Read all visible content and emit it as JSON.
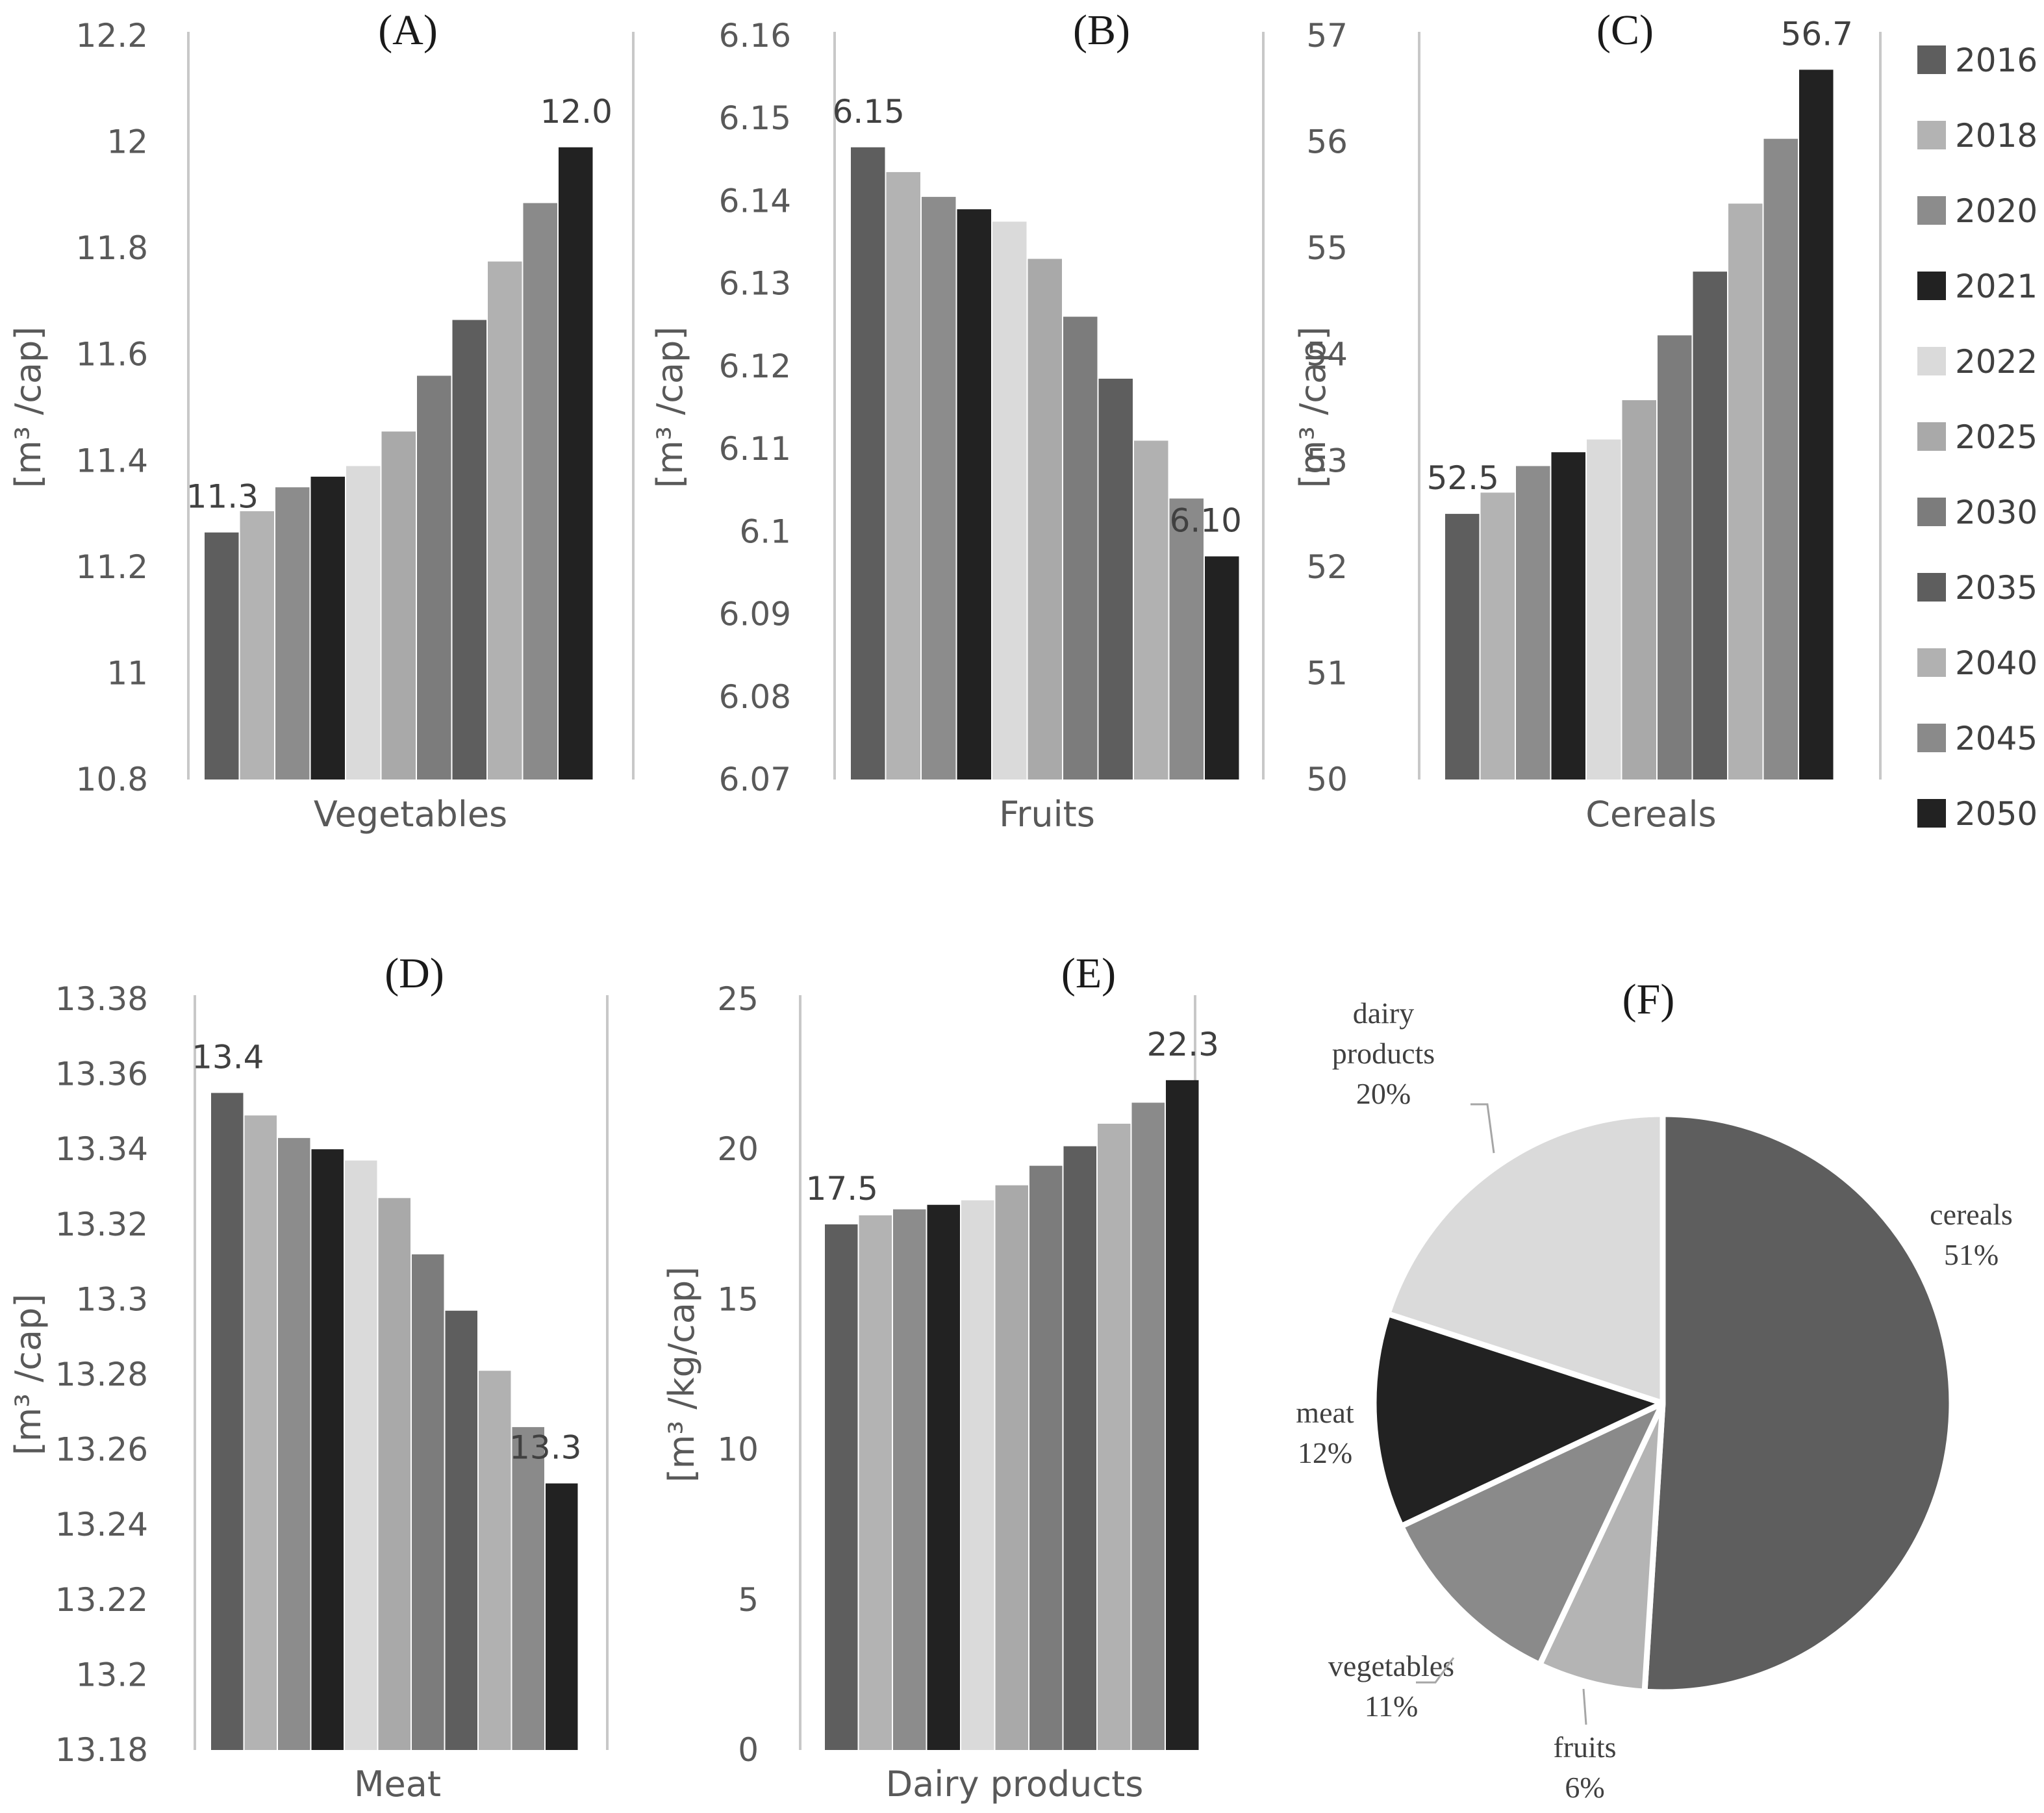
{
  "figure": {
    "legend": {
      "title": "",
      "years": [
        "2016",
        "2018",
        "2020",
        "2021",
        "2022",
        "2025",
        "2030",
        "2035",
        "2040",
        "2045",
        "2050"
      ],
      "colors": [
        "#5e5e5e",
        "#b3b3b3",
        "#8c8c8c",
        "#222222",
        "#dadada",
        "#a9a9a9",
        "#7c7c7c",
        "#5e5e5e",
        "#b1b1b1",
        "#8a8a8a",
        "#222222"
      ]
    }
  },
  "chart_data": [
    {
      "type": "bar",
      "panel": "(A)",
      "category": "Vegetables",
      "ylabel": "[m³ /cap]",
      "ylim": [
        10.8,
        12.2
      ],
      "ticks": [
        10.8,
        11,
        11.2,
        11.4,
        11.6,
        11.8,
        12,
        12.2
      ],
      "tick_labels": [
        "10.8",
        "11",
        "11.2",
        "11.4",
        "11.6",
        "11.8",
        "12",
        "12.2"
      ],
      "values": [
        11.265,
        11.305,
        11.35,
        11.37,
        11.39,
        11.455,
        11.56,
        11.665,
        11.775,
        11.885,
        11.99
      ],
      "first_label": "11.3",
      "last_label": "12.0"
    },
    {
      "type": "bar",
      "panel": "(B)",
      "category": "Fruits",
      "ylabel": "[m³ /cap]",
      "ylim": [
        6.07,
        6.16
      ],
      "ticks": [
        6.07,
        6.08,
        6.09,
        6.1,
        6.11,
        6.12,
        6.13,
        6.14,
        6.15,
        6.16
      ],
      "tick_labels": [
        "6.07",
        "6.08",
        "6.09",
        "6.1",
        "6.11",
        "6.12",
        "6.13",
        "6.14",
        "6.15",
        "6.16"
      ],
      "values": [
        6.1465,
        6.1435,
        6.1405,
        6.139,
        6.1375,
        6.133,
        6.126,
        6.1185,
        6.111,
        6.104,
        6.097
      ],
      "first_label": "6.15",
      "last_label": "6.10"
    },
    {
      "type": "bar",
      "panel": "(C)",
      "category": "Cereals",
      "ylabel": "[m³ /cap]",
      "ylim": [
        50,
        57
      ],
      "ticks": [
        50,
        51,
        52,
        53,
        54,
        55,
        56,
        57
      ],
      "tick_labels": [
        "50",
        "51",
        "52",
        "53",
        "54",
        "55",
        "56",
        "57"
      ],
      "values": [
        52.5,
        52.7,
        52.95,
        53.08,
        53.2,
        53.57,
        54.18,
        54.78,
        55.42,
        56.03,
        56.68
      ],
      "first_label": "52.5",
      "last_label": "56.7"
    },
    {
      "type": "bar",
      "panel": "(D)",
      "category": "Meat",
      "ylabel": "[m³ /cap]",
      "ylim": [
        13.18,
        13.38
      ],
      "ticks": [
        13.18,
        13.2,
        13.22,
        13.24,
        13.26,
        13.28,
        13.3,
        13.32,
        13.34,
        13.36,
        13.38
      ],
      "tick_labels": [
        "13.18",
        "13.2",
        "13.22",
        "13.24",
        "13.26",
        "13.28",
        "13.3",
        "13.32",
        "13.34",
        "13.36",
        "13.38"
      ],
      "values": [
        13.355,
        13.349,
        13.343,
        13.34,
        13.337,
        13.327,
        13.312,
        13.297,
        13.281,
        13.266,
        13.251
      ],
      "first_label": "13.4",
      "last_label": "13.3"
    },
    {
      "type": "bar",
      "panel": "(E)",
      "category": "Dairy products",
      "ylabel": "[m³ /kg/cap]",
      "ylim": [
        0,
        25
      ],
      "ticks": [
        0,
        5,
        10,
        15,
        20,
        25
      ],
      "tick_labels": [
        "0",
        "5",
        "10",
        "15",
        "20",
        "25"
      ],
      "values": [
        17.5,
        17.8,
        18.0,
        18.15,
        18.3,
        18.8,
        19.45,
        20.1,
        20.85,
        21.55,
        22.3
      ],
      "first_label": "17.5",
      "last_label": "22.3"
    },
    {
      "type": "pie",
      "panel": "(F)",
      "slices": [
        {
          "name": "cereals",
          "value": 51,
          "label": "51%",
          "color": "#5e5e5e"
        },
        {
          "name": "fruits",
          "value": 6,
          "label": "6%",
          "color": "#b4b4b4"
        },
        {
          "name": "vegetables",
          "value": 11,
          "label": "11%",
          "color": "#8a8a8a"
        },
        {
          "name": "meat",
          "value": 12,
          "label": "12%",
          "color": "#222222"
        },
        {
          "name": "dairy",
          "value": 20,
          "label": "20%",
          "color": "#dadada"
        }
      ],
      "text_lines": {
        "cereals": [
          "cereals",
          "51%"
        ],
        "fruits": [
          "fruits",
          "6%"
        ],
        "vegetables": [
          "vegetables",
          "11%"
        ],
        "meat": [
          "meat",
          "12%"
        ],
        "dairy": [
          "dairy",
          "products",
          "20%"
        ]
      }
    }
  ]
}
